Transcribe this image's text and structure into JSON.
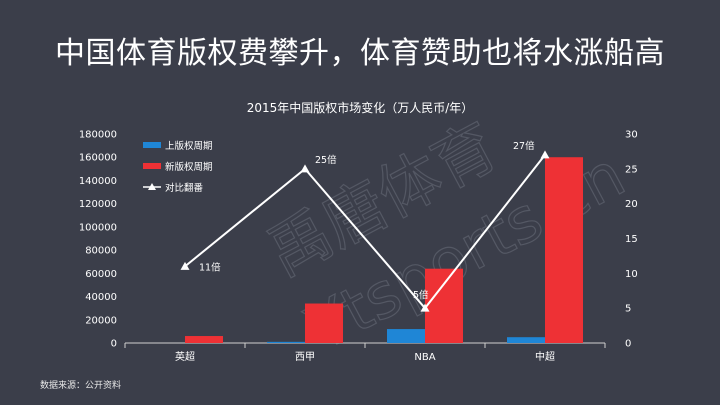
{
  "headline": "中国体育版权费攀升，体育赞助也将水涨船高",
  "source": "数据来源：公开资料",
  "watermark": [
    "禹唐体育",
    "Ytsports.cn"
  ],
  "chart_data": {
    "type": "bar+line",
    "title": "2015年中国版权市场变化（万人民币/年）",
    "categories": [
      "英超",
      "西甲",
      "NBA",
      "中超"
    ],
    "series": [
      {
        "name": "上版权周期",
        "kind": "bar",
        "axis": "left",
        "color": "#1f86d6",
        "values": [
          0,
          1000,
          12000,
          5000
        ]
      },
      {
        "name": "新版权周期",
        "kind": "bar",
        "axis": "left",
        "color": "#ee3135",
        "values": [
          6000,
          34000,
          64000,
          160000
        ]
      },
      {
        "name": "对比翻番",
        "kind": "line",
        "axis": "right",
        "color": "#ffffff",
        "values": [
          11,
          25,
          5,
          27
        ],
        "labels": [
          "11倍",
          "25倍",
          "5倍",
          "27倍"
        ]
      }
    ],
    "y_left": {
      "min": 0,
      "max": 180000,
      "ticks": [
        "0",
        "20000",
        "40000",
        "60000",
        "80000",
        "100000",
        "120000",
        "140000",
        "160000",
        "180000"
      ]
    },
    "y_right": {
      "min": 0,
      "max": 30,
      "ticks": [
        "0",
        "5",
        "10",
        "15",
        "20",
        "25",
        "30"
      ]
    },
    "legend_position": "top-left",
    "grid": false
  }
}
